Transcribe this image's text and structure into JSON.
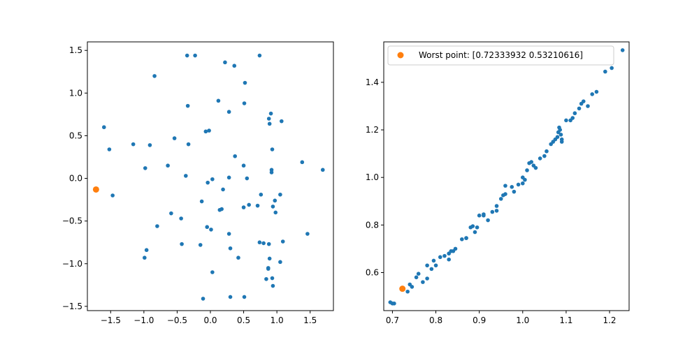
{
  "chart_data": [
    {
      "type": "scatter",
      "xlim": [
        -1.85,
        1.85
      ],
      "ylim": [
        -1.55,
        1.6
      ],
      "xticks": [
        -1.5,
        -1.0,
        -0.5,
        0.0,
        0.5,
        1.0,
        1.5
      ],
      "xtick_labels": [
        "−1.5",
        "−1.0",
        "−0.5",
        "0.0",
        "0.5",
        "1.0",
        "1.5"
      ],
      "yticks": [
        -1.5,
        -1.0,
        -0.5,
        0.0,
        0.5,
        1.0,
        1.5
      ],
      "ytick_labels": [
        "−1.5",
        "−1.0",
        "−0.5",
        "0.0",
        "0.5",
        "1.0",
        "1.5"
      ],
      "colors": {
        "points": "#1f77b4",
        "highlight": "#ff7f0e"
      },
      "series": [
        {
          "x": [
            -0.35,
            -0.23,
            0.74,
            0.22,
            0.36,
            -0.84,
            0.52,
            0.12,
            0.51,
            -0.34,
            0.28,
            0.91,
            0.88,
            0.89,
            1.07,
            -1.6,
            -1.52,
            -0.07,
            -0.02,
            -0.54,
            -1.16,
            -0.91,
            -0.33,
            0.93,
            0.37,
            -0.64,
            0.5,
            -0.98,
            0.92,
            0.92,
            -0.37,
            0.28,
            0.03,
            -0.04,
            0.55,
            0.19,
            0.76,
            0.97,
            -1.47,
            1.05,
            -0.13,
            0.58,
            0.71,
            0.94,
            0.5,
            0.17,
            0.14,
            -0.59,
            0.98,
            -0.44,
            -0.8,
            -0.05,
            0.01,
            0.28,
            1.09,
            0.74,
            0.8,
            0.88,
            -0.43,
            -0.15,
            -0.96,
            0.3,
            -0.99,
            0.42,
            0.89,
            0.87,
            0.87,
            1.05,
            0.03,
            0.93,
            0.84,
            0.94,
            -0.11,
            0.3,
            0.51,
            1.38,
            1.69,
            1.46
          ],
          "y": [
            1.44,
            1.44,
            1.44,
            1.36,
            1.32,
            1.2,
            1.12,
            0.91,
            0.88,
            0.85,
            0.78,
            0.76,
            0.7,
            0.64,
            0.67,
            0.6,
            0.34,
            0.55,
            0.56,
            0.47,
            0.4,
            0.39,
            0.4,
            0.34,
            0.26,
            0.15,
            0.15,
            0.12,
            0.1,
            0.07,
            0.03,
            0.01,
            -0.01,
            -0.05,
            0.0,
            -0.13,
            -0.19,
            -0.26,
            -0.2,
            -0.19,
            -0.27,
            -0.31,
            -0.32,
            -0.33,
            -0.34,
            -0.36,
            -0.37,
            -0.41,
            -0.4,
            -0.47,
            -0.56,
            -0.57,
            -0.6,
            -0.65,
            -0.74,
            -0.75,
            -0.76,
            -0.77,
            -0.77,
            -0.78,
            -0.84,
            -0.82,
            -0.93,
            -0.93,
            -0.94,
            -1.05,
            -1.06,
            -0.98,
            -1.1,
            -1.17,
            -1.18,
            -1.26,
            -1.41,
            -1.39,
            -1.39,
            0.19,
            0.1,
            -0.65
          ]
        }
      ],
      "highlight": {
        "x": [
          -1.72
        ],
        "y": [
          -0.13
        ]
      }
    },
    {
      "type": "scatter",
      "xlim": [
        0.68,
        1.245
      ],
      "ylim": [
        0.44,
        1.57
      ],
      "xticks": [
        0.7,
        0.8,
        0.9,
        1.0,
        1.1,
        1.2
      ],
      "xtick_labels": [
        "0.7",
        "0.8",
        "0.9",
        "1.0",
        "1.1",
        "1.2"
      ],
      "yticks": [
        0.6,
        0.8,
        1.0,
        1.2,
        1.4
      ],
      "ytick_labels": [
        "0.6",
        "0.8",
        "1.0",
        "1.2",
        "1.4"
      ],
      "colors": {
        "points": "#1f77b4",
        "highlight": "#ff7f0e"
      },
      "legend": {
        "placement": "top-left",
        "label": "Worst point: [0.72333932 0.53210616]"
      },
      "series": [
        {
          "x": [
            0.695,
            0.7,
            0.704,
            0.725,
            0.735,
            0.74,
            0.745,
            0.755,
            0.76,
            0.77,
            0.78,
            0.79,
            0.8,
            0.81,
            0.82,
            0.83,
            0.835,
            0.84,
            0.86,
            0.87,
            0.88,
            0.885,
            0.89,
            0.895,
            0.9,
            0.91,
            0.92,
            0.93,
            0.94,
            0.95,
            0.955,
            0.96,
            0.975,
            0.98,
            0.99,
            1.0,
            1.005,
            1.01,
            1.015,
            1.02,
            1.025,
            1.03,
            1.04,
            1.05,
            1.055,
            1.065,
            1.07,
            1.075,
            1.08,
            1.082,
            1.084,
            1.086,
            1.088,
            1.09,
            1.1,
            1.11,
            1.115,
            1.12,
            1.13,
            1.135,
            1.14,
            1.15,
            1.16,
            1.17,
            1.19,
            1.205,
            1.23,
            0.83,
            0.96,
            1.0,
            1.09,
            0.94,
            0.87,
            0.91,
            0.78,
            0.795,
            0.845
          ],
          "y": [
            0.475,
            0.47,
            0.47,
            0.53,
            0.52,
            0.55,
            0.54,
            0.58,
            0.595,
            0.56,
            0.575,
            0.615,
            0.63,
            0.665,
            0.67,
            0.68,
            0.69,
            0.69,
            0.74,
            0.745,
            0.79,
            0.795,
            0.77,
            0.79,
            0.84,
            0.845,
            0.82,
            0.855,
            0.86,
            0.91,
            0.925,
            0.93,
            0.96,
            0.94,
            0.97,
            1.0,
            0.99,
            1.03,
            1.06,
            1.065,
            1.05,
            1.04,
            1.08,
            1.09,
            1.11,
            1.14,
            1.15,
            1.16,
            1.17,
            1.19,
            1.21,
            1.2,
            1.18,
            1.16,
            1.24,
            1.24,
            1.25,
            1.27,
            1.29,
            1.31,
            1.32,
            1.3,
            1.35,
            1.36,
            1.445,
            1.46,
            1.535,
            0.655,
            0.965,
            0.975,
            1.15,
            0.88,
            0.745,
            0.84,
            0.63,
            0.65,
            0.7
          ]
        }
      ],
      "highlight": {
        "x": [
          0.723
        ],
        "y": [
          0.532
        ]
      }
    }
  ]
}
